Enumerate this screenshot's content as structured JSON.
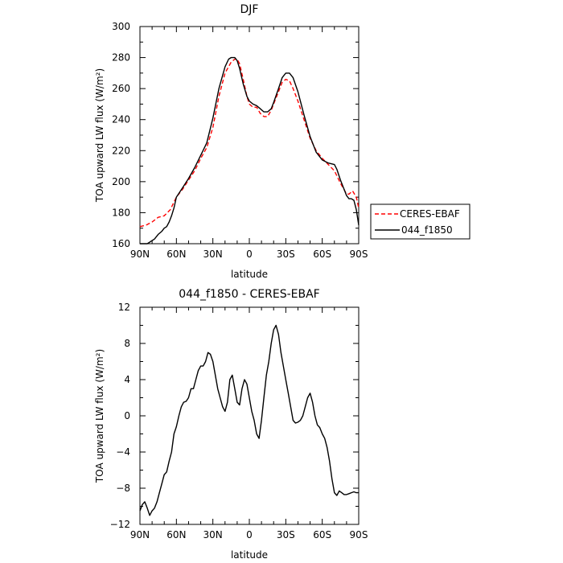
{
  "chart_data": [
    {
      "type": "line",
      "title": "DJF",
      "xlabel": "latitude",
      "ylabel": "TOA upward LW flux (W/m²)",
      "xlim": [
        90,
        -90
      ],
      "ylim": [
        160,
        300
      ],
      "xticks": [
        90,
        60,
        30,
        0,
        -30,
        -60,
        -90
      ],
      "xtick_labels": [
        "90N",
        "60N",
        "30N",
        "0",
        "30S",
        "60S",
        "90S"
      ],
      "yticks": [
        160,
        180,
        200,
        220,
        240,
        260,
        280,
        300
      ],
      "ytick_labels": [
        "160",
        "180",
        "200",
        "220",
        "240",
        "260",
        "280",
        "300"
      ],
      "grid": false,
      "legend_position": "outside-right",
      "series": [
        {
          "name": "CERES-EBAF",
          "color": "#ff0000",
          "style": "dashed",
          "x": [
            90,
            85,
            80,
            75,
            70,
            65,
            60,
            55,
            50,
            45,
            40,
            35,
            30,
            25,
            20,
            15,
            12,
            10,
            8,
            5,
            2,
            0,
            -3,
            -6,
            -9,
            -12,
            -15,
            -18,
            -20,
            -24,
            -27,
            -30,
            -33,
            -36,
            -40,
            -45,
            -50,
            -55,
            -60,
            -65,
            -70,
            -75,
            -80,
            -82,
            -85,
            -88,
            -90
          ],
          "y": [
            171,
            172,
            174,
            177,
            178,
            182,
            190,
            195,
            201,
            207,
            215,
            222,
            235,
            255,
            270,
            277,
            279,
            279,
            276,
            266,
            255,
            250,
            248,
            248,
            244,
            242,
            242,
            246,
            250,
            258,
            264,
            266,
            265,
            260,
            252,
            240,
            228,
            220,
            215,
            211,
            207,
            199,
            192,
            192,
            194,
            190,
            183
          ]
        },
        {
          "name": "044_f1850",
          "color": "#000000",
          "style": "solid",
          "x": [
            90,
            87,
            84,
            82,
            80,
            78,
            75,
            72,
            70,
            68,
            66,
            64,
            62,
            60,
            55,
            50,
            45,
            40,
            35,
            30,
            25,
            20,
            17,
            15,
            12,
            10,
            8,
            5,
            2,
            0,
            -3,
            -6,
            -9,
            -12,
            -15,
            -18,
            -20,
            -24,
            -27,
            -30,
            -33,
            -36,
            -40,
            -45,
            -50,
            -55,
            -60,
            -65,
            -70,
            -72,
            -75,
            -78,
            -80,
            -82,
            -84,
            -86,
            -88,
            -90
          ],
          "y": [
            160,
            160,
            160,
            161,
            162,
            163,
            166,
            168,
            170,
            171,
            174,
            178,
            183,
            190,
            196,
            202,
            209,
            217,
            225,
            241,
            260,
            274,
            279,
            280,
            280,
            278,
            273,
            263,
            255,
            252,
            250,
            249,
            247,
            245,
            245,
            247,
            251,
            260,
            267,
            270,
            270,
            267,
            258,
            243,
            229,
            219,
            214,
            212,
            211,
            208,
            201,
            195,
            191,
            189,
            189,
            188,
            182,
            172
          ]
        }
      ]
    },
    {
      "type": "line",
      "title": "044_f1850 - CERES-EBAF",
      "xlabel": "latitude",
      "ylabel": "TOA upward LW flux (W/m²)",
      "xlim": [
        90,
        -90
      ],
      "ylim": [
        -12,
        12
      ],
      "xticks": [
        90,
        60,
        30,
        0,
        -30,
        -60,
        -90
      ],
      "xtick_labels": [
        "90N",
        "60N",
        "30N",
        "0",
        "30S",
        "60S",
        "90S"
      ],
      "yticks": [
        -12,
        -8,
        -4,
        0,
        4,
        8,
        12
      ],
      "ytick_labels": [
        "−12",
        "−8",
        "−4",
        "0",
        "4",
        "8",
        "12"
      ],
      "grid": false,
      "series": [
        {
          "color": "#000000",
          "style": "solid",
          "x": [
            90,
            88,
            86,
            84,
            82,
            80,
            78,
            76,
            74,
            72,
            70,
            68,
            66,
            64,
            62,
            60,
            58,
            56,
            54,
            52,
            50,
            48,
            46,
            44,
            42,
            40,
            38,
            36,
            34,
            32,
            30,
            28,
            26,
            24,
            22,
            20,
            18,
            16,
            14,
            12,
            10,
            8,
            6,
            4,
            2,
            0,
            -2,
            -4,
            -6,
            -8,
            -10,
            -12,
            -14,
            -16,
            -18,
            -20,
            -22,
            -24,
            -26,
            -28,
            -30,
            -32,
            -34,
            -36,
            -38,
            -40,
            -42,
            -44,
            -46,
            -48,
            -50,
            -52,
            -54,
            -56,
            -58,
            -60,
            -62,
            -64,
            -66,
            -68,
            -70,
            -72,
            -74,
            -76,
            -78,
            -80,
            -82,
            -84,
            -86,
            -88,
            -90
          ],
          "y": [
            -10.5,
            -9.8,
            -9.5,
            -10.2,
            -11,
            -10.5,
            -10.2,
            -9.5,
            -8.5,
            -7.5,
            -6.5,
            -6.2,
            -5,
            -4,
            -2,
            -1.2,
            0,
            1,
            1.5,
            1.6,
            2,
            3,
            3,
            4,
            5,
            5.5,
            5.5,
            6,
            7,
            6.8,
            6,
            4.5,
            3,
            2,
            1,
            0.5,
            1.5,
            4,
            4.5,
            3,
            1.5,
            1.2,
            3,
            4,
            3.5,
            2,
            0.5,
            -0.5,
            -2,
            -2.5,
            -0.5,
            2,
            4.5,
            6,
            8,
            9.5,
            10,
            9,
            7,
            5.5,
            4,
            2.5,
            1,
            -0.5,
            -0.8,
            -0.7,
            -0.5,
            0,
            1,
            2,
            2.5,
            1.5,
            0,
            -1,
            -1.3,
            -2,
            -2.5,
            -3.5,
            -5,
            -7,
            -8.5,
            -8.8,
            -8.3,
            -8.5,
            -8.7,
            -8.7,
            -8.6,
            -8.5,
            -8.4,
            -8.5,
            -8.5
          ]
        }
      ]
    }
  ]
}
